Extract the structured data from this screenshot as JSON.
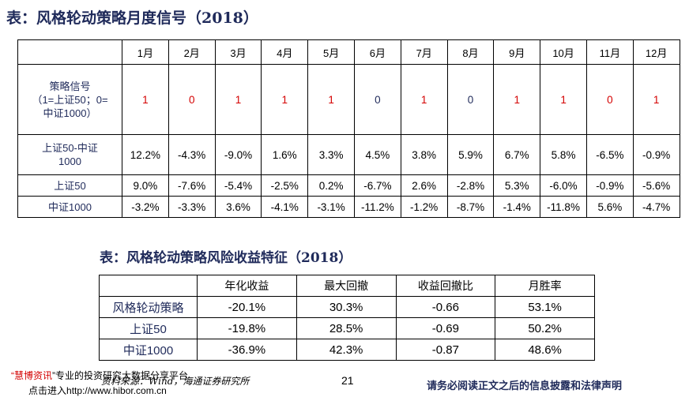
{
  "title1": "表：风格轮动策略月度信号（2018）",
  "monthly": {
    "months": [
      "1月",
      "2月",
      "3月",
      "4月",
      "5月",
      "6月",
      "7月",
      "8月",
      "9月",
      "10月",
      "11月",
      "12月"
    ],
    "signal_label": [
      "策略信号",
      "（1=上证50；0=",
      "中证1000）"
    ],
    "signals": [
      "1",
      "0",
      "1",
      "1",
      "1",
      "0",
      "1",
      "0",
      "1",
      "1",
      "0",
      "1"
    ],
    "strategy_label": [
      "上证50-中证",
      "1000"
    ],
    "strategy": [
      "12.2%",
      "-4.3%",
      "-9.0%",
      "1.6%",
      "3.3%",
      "4.5%",
      "3.8%",
      "5.9%",
      "6.7%",
      "5.8%",
      "-6.5%",
      "-0.9%"
    ],
    "sz50_label": "上证50",
    "sz50": [
      "9.0%",
      "-7.6%",
      "-5.4%",
      "-2.5%",
      "0.2%",
      "-6.7%",
      "2.6%",
      "-2.8%",
      "5.3%",
      "-6.0%",
      "-0.9%",
      "-5.6%"
    ],
    "zz1000_label": "中证1000",
    "zz1000": [
      "-3.2%",
      "-3.3%",
      "3.6%",
      "-4.1%",
      "-3.1%",
      "-11.2%",
      "-1.2%",
      "-8.7%",
      "-1.4%",
      "-11.8%",
      "5.6%",
      "-4.7%"
    ]
  },
  "title2": "表：风格轮动策略风险收益特征（2018）",
  "risk": {
    "headers": [
      "年化收益",
      "最大回撤",
      "收益回撤比",
      "月胜率"
    ],
    "rows": [
      {
        "label": "风格轮动策略",
        "values": [
          "-20.1%",
          "30.3%",
          "-0.66",
          "53.1%"
        ]
      },
      {
        "label": "上证50",
        "values": [
          "-19.8%",
          "28.5%",
          "-0.69",
          "50.2%"
        ]
      },
      {
        "label": "中证1000",
        "values": [
          "-36.9%",
          "42.3%",
          "-0.87",
          "48.6%"
        ]
      }
    ]
  },
  "footer": {
    "src_quote_open": "“",
    "src_brand": "慧博资讯",
    "src_quote_close": "”",
    "src_text": "专业的投资研究大数据分享平台",
    "src_line2": "点击进入",
    "src_url": "http://www.hibor.com.cn",
    "citation": "资料来源：Wind，海通证券研究所",
    "page_number": "21",
    "disclaimer": "请务必阅读正文之后的信息披露和法律声明"
  },
  "colors": {
    "signal_one": "#d40000",
    "signal_zero_navy": "#1f2a5a",
    "title": "#1f2a5a"
  }
}
